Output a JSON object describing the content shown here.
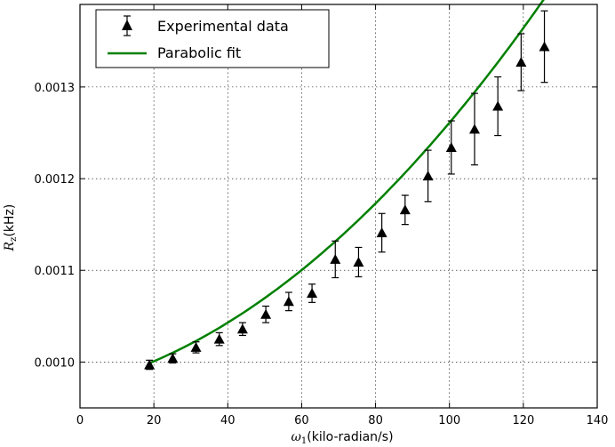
{
  "chart_data": {
    "type": "scatter",
    "xlabel_symbol": "ω",
    "xlabel_subscript": "1",
    "xlabel_unit": "(kilo-radian/s)",
    "ylabel_symbol": "R",
    "ylabel_subscript": "z",
    "ylabel_unit": "(kHz)",
    "xlim": [
      0,
      140
    ],
    "ylim": [
      0.00095,
      0.00139
    ],
    "xticks": [
      "0",
      "20",
      "40",
      "60",
      "80",
      "100",
      "120",
      "140"
    ],
    "yticks": [
      "0.0010",
      "0.0011",
      "0.0012",
      "0.0013"
    ],
    "grid": true,
    "legend": {
      "position": "top-left",
      "entries": [
        "Experimental data",
        "Parabolic fit"
      ]
    },
    "colors": {
      "fit": "#008000",
      "markers": "#000000"
    },
    "series": [
      {
        "name": "Experimental data",
        "style": "triangle-markers-with-error-bars",
        "x": [
          18.8,
          25.1,
          31.4,
          37.7,
          44.0,
          50.3,
          56.5,
          62.8,
          69.1,
          75.4,
          81.7,
          88.0,
          94.2,
          100.5,
          106.8,
          113.1,
          119.4,
          125.7
        ],
        "y": [
          0.000997,
          0.001004,
          0.001016,
          0.001025,
          0.001036,
          0.001052,
          0.001066,
          0.001075,
          0.001112,
          0.001109,
          0.001141,
          0.001166,
          0.001203,
          0.001234,
          0.001254,
          0.001279,
          0.001327,
          0.001344
        ],
        "yerr": [
          5e-06,
          5e-06,
          6e-06,
          7e-06,
          7e-06,
          9e-06,
          1e-05,
          1e-05,
          2e-05,
          1.6e-05,
          2.1e-05,
          1.6e-05,
          2.8e-05,
          2.9e-05,
          3.9e-05,
          3.2e-05,
          3.1e-05,
          3.9e-05
        ]
      },
      {
        "name": "Parabolic fit",
        "style": "line",
        "x_range": [
          18.8,
          125.7
        ],
        "coefficients": {
          "a": 1.91e-08,
          "b": 9.6e-07,
          "c": 0.000974
        }
      }
    ]
  }
}
